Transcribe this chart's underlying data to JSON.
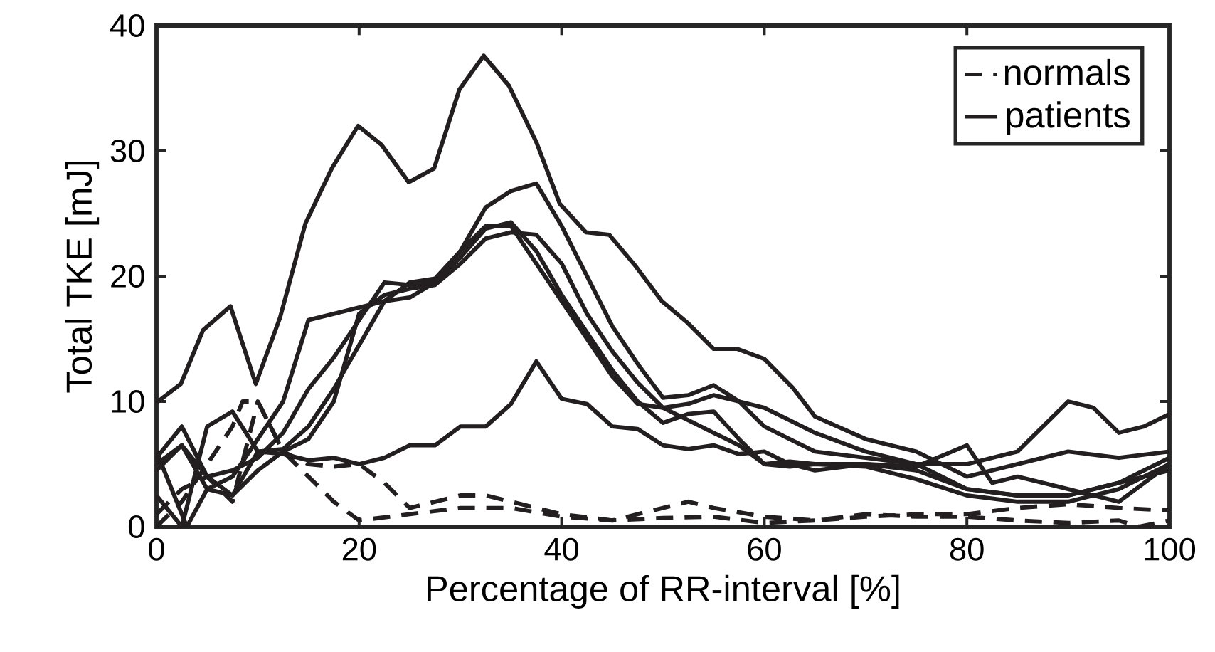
{
  "chart_data": {
    "type": "line",
    "xlabel": "Percentage of RR-interval [%]",
    "ylabel": "Total TKE [mJ]",
    "xlim": [
      0,
      100
    ],
    "ylim": [
      0,
      40
    ],
    "xticks": [
      0,
      20,
      40,
      60,
      80,
      100
    ],
    "yticks": [
      0,
      10,
      20,
      30,
      40
    ],
    "grid": false,
    "legend": "top right",
    "marker": "none",
    "series": [
      {
        "name": "normals",
        "color": "#231f20",
        "line_style": "dashed",
        "x": [
          0,
          2.5,
          5,
          7.5,
          10,
          12.5,
          15,
          17.5,
          20,
          22.5,
          25,
          27.5,
          30,
          32.5,
          35,
          40,
          45,
          50,
          52.5,
          55,
          60,
          65,
          70,
          75,
          80,
          85,
          90,
          95,
          100
        ],
        "values": [
          1,
          3,
          4,
          2,
          10,
          6,
          5,
          4.8,
          5,
          3.5,
          1.5,
          2,
          2.5,
          2.5,
          2,
          1,
          0.5,
          1.5,
          2,
          1.5,
          0.8,
          0.5,
          0.8,
          1,
          1,
          1.5,
          1.8,
          1.5,
          1.3
        ]
      },
      {
        "color": "#231f20",
        "line_style": "dashed",
        "x": [
          0,
          2.5,
          5,
          7.5,
          8.5,
          10,
          12.5,
          15,
          17.5,
          20,
          25,
          30,
          35,
          40,
          45,
          50,
          55,
          60,
          65,
          70,
          75,
          80,
          85,
          90,
          95,
          97,
          100
        ],
        "values": [
          0,
          2,
          5,
          8,
          10,
          10,
          6,
          4,
          2,
          0.5,
          1,
          1.5,
          1.5,
          0.8,
          0.5,
          0.7,
          0.8,
          0.3,
          0.5,
          1,
          0.8,
          0.8,
          0.5,
          0.3,
          0.5,
          0,
          0.5
        ]
      },
      {
        "name": "patients",
        "color": "#231f20",
        "line_style": "solid",
        "x": [
          0,
          2.4,
          4.6,
          7.3,
          9.8,
          12.2,
          14.7,
          17.3,
          19.9,
          22.2,
          24.9,
          27.4,
          29.9,
          32.3,
          34.8,
          37.5,
          39.8,
          42.4,
          44.7,
          47.3,
          49.9,
          52.4,
          55,
          57.3,
          60,
          62.8,
          65,
          70,
          75,
          80,
          85,
          90,
          95,
          100
        ],
        "values": [
          9.9,
          11.4,
          15.7,
          17.6,
          11.4,
          16.7,
          24.2,
          28.6,
          32,
          30.5,
          27.5,
          28.6,
          34.9,
          37.6,
          35.2,
          30.7,
          25.8,
          23.5,
          23.3,
          20.8,
          18,
          16.3,
          14.2,
          14.2,
          13.4,
          11.1,
          8.8,
          7,
          6,
          4,
          5,
          6,
          5.5,
          6
        ]
      },
      {
        "color": "#231f20",
        "line_style": "solid",
        "x": [
          0,
          2.5,
          5,
          7.5,
          10,
          12.5,
          15,
          17.5,
          20,
          22.5,
          25,
          27.5,
          30,
          32.5,
          35,
          37.5,
          40,
          42.5,
          45,
          47.5,
          50,
          52.5,
          55,
          57.5,
          60,
          62.5,
          65,
          70,
          75,
          80,
          85,
          90,
          95,
          100
        ],
        "values": [
          5.5,
          8,
          4,
          4.5,
          5.5,
          7.5,
          11,
          13.5,
          16.5,
          19.5,
          19.3,
          19.6,
          22,
          25.5,
          26.8,
          27.4,
          24,
          20,
          16,
          13,
          10.3,
          10.5,
          11.3,
          10,
          9.5,
          8.5,
          7.5,
          6,
          5,
          3,
          2.5,
          2.5,
          3.5,
          5.5
        ]
      },
      {
        "color": "#231f20",
        "line_style": "solid",
        "x": [
          0,
          2.5,
          5,
          7.5,
          10,
          12.5,
          15,
          17.5,
          20,
          22.5,
          25,
          27.5,
          30,
          32.5,
          35,
          37.5,
          40,
          42.5,
          45,
          47.5,
          50,
          52.5,
          55,
          57.5,
          60,
          62.5,
          65,
          70,
          75,
          80,
          85,
          90,
          95,
          100
        ],
        "values": [
          2.5,
          0,
          8,
          9.2,
          6,
          6.2,
          8,
          11,
          14.5,
          18,
          18.3,
          19.5,
          21.5,
          23.8,
          24.3,
          22,
          18.5,
          15.5,
          12.5,
          10,
          8.3,
          9,
          9.2,
          7,
          5,
          5.2,
          5,
          5,
          4.5,
          3,
          2.5,
          2.5,
          3.5,
          4.5
        ]
      },
      {
        "color": "#231f20",
        "line_style": "solid",
        "x": [
          0,
          3,
          5,
          7.5,
          10,
          12.5,
          15,
          17.5,
          20,
          22.5,
          25,
          27.5,
          30,
          32.5,
          35,
          37.5,
          40,
          42.5,
          45,
          47.5,
          50,
          52.5,
          55,
          57.5,
          60,
          62.5,
          65,
          70,
          75,
          80,
          85,
          90,
          95,
          100
        ],
        "values": [
          6,
          0,
          3,
          2.5,
          4.5,
          6,
          7,
          10,
          17,
          18.5,
          19,
          19.3,
          21,
          23,
          23.5,
          23.3,
          21,
          17,
          14,
          11.5,
          9.5,
          8.5,
          7.5,
          6.5,
          5,
          4.8,
          5,
          4.8,
          3.8,
          2.5,
          2,
          2,
          3,
          5
        ]
      },
      {
        "color": "#231f20",
        "line_style": "solid",
        "x": [
          0,
          2.5,
          5,
          7.5,
          10,
          12.5,
          15,
          17.5,
          20,
          22.5,
          25,
          27.5,
          30,
          32.5,
          35,
          37.5,
          40,
          42.5,
          45,
          47.5,
          50,
          52.5,
          55,
          57.5,
          60,
          62.5,
          65,
          70,
          75,
          80,
          85,
          90,
          92.5,
          95,
          97.5,
          100
        ],
        "values": [
          5,
          6.5,
          3,
          4,
          7,
          10,
          16.5,
          17,
          17.5,
          18,
          19.5,
          19.8,
          22,
          24,
          24,
          21,
          18,
          15,
          12,
          9.8,
          9.5,
          9.8,
          10.5,
          10,
          8,
          7,
          6,
          5.5,
          5,
          5,
          6,
          10,
          9.5,
          7.5,
          8,
          9
        ]
      },
      {
        "color": "#231f20",
        "line_style": "solid",
        "x": [
          0,
          2.5,
          5,
          7.5,
          10,
          12.5,
          15,
          17.5,
          20,
          22.5,
          25,
          27.5,
          30,
          32.5,
          35,
          37.5,
          40,
          42.5,
          45,
          47.5,
          50,
          52.5,
          55,
          57.5,
          60,
          62.5,
          65,
          70,
          75,
          80,
          82.5,
          85,
          90,
          95,
          100
        ],
        "values": [
          4.5,
          6.5,
          4,
          2.5,
          6,
          5.8,
          5.3,
          5.5,
          5,
          5.5,
          6.5,
          6.5,
          8,
          8,
          9.8,
          13.2,
          10.2,
          9.8,
          8,
          7.8,
          6.5,
          6.2,
          6.5,
          5.8,
          6,
          5,
          4.5,
          5,
          4.8,
          6.5,
          3.5,
          4,
          3,
          2,
          5
        ]
      }
    ]
  }
}
